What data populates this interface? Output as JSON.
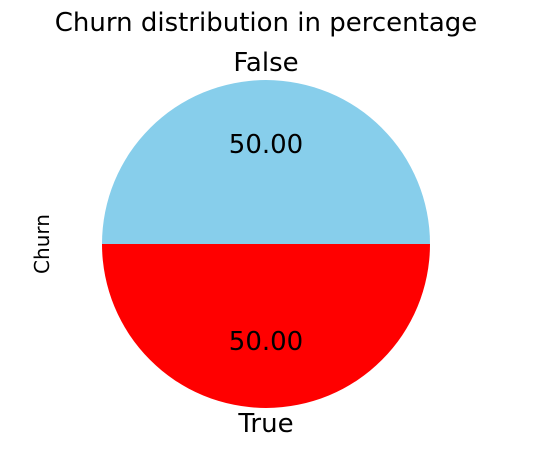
{
  "chart_data": {
    "type": "pie",
    "title": "Churn distribution in percentage",
    "ylabel": "Churn",
    "categories": [
      "False",
      "True"
    ],
    "values": [
      50.0,
      50.0
    ],
    "value_labels": [
      "50.00",
      "50.00"
    ],
    "colors": [
      "#87CEEB",
      "#FF0000"
    ],
    "start_angle_deg": 0,
    "legend": "none",
    "grid": false
  }
}
